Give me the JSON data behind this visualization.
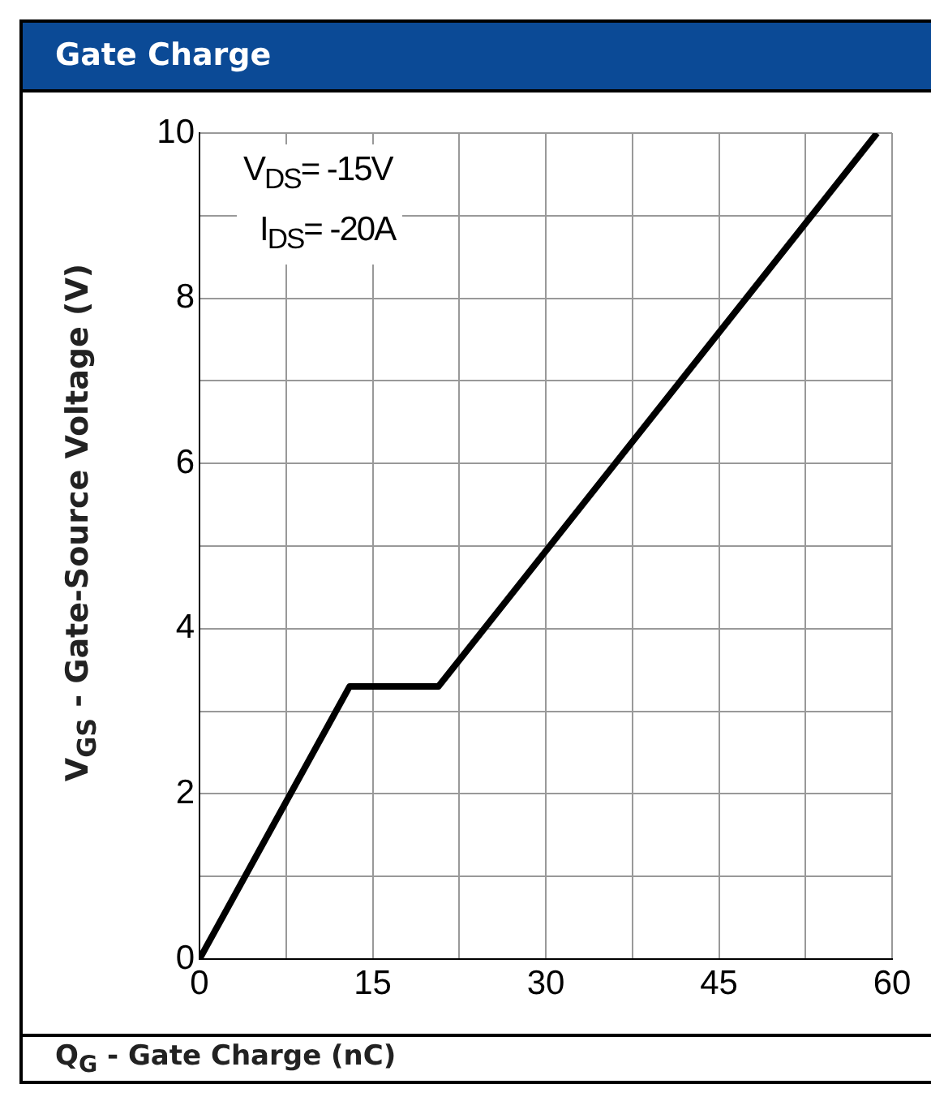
{
  "chart_data": {
    "type": "line",
    "title": "Gate Charge",
    "xlabel": "Q$_{G}$ - Gate Charge (nC)",
    "ylabel": "V$_{GS}$ - Gate-Source Voltage (V)",
    "series": [
      {
        "color": "#000000",
        "x": [
          0,
          13,
          20.7,
          58.7
        ],
        "values": [
          0,
          3.3,
          3.3,
          10
        ]
      }
    ],
    "xlim": [
      0,
      60
    ],
    "xticks": [
      0,
      {
        "value": 7.5,
        "label": null
      },
      15,
      {
        "value": 22.5,
        "label": null
      },
      30,
      {
        "value": 37.5,
        "label": null
      },
      45,
      {
        "value": 52.5,
        "label": null
      },
      60
    ],
    "ylim": [
      0,
      10
    ],
    "yticks": [
      0,
      {
        "value": 1,
        "label": null
      },
      2,
      {
        "value": 3,
        "label": null
      },
      4,
      {
        "value": 5,
        "label": null
      },
      6,
      {
        "value": 7,
        "label": null
      },
      8,
      {
        "value": 9,
        "label": null
      },
      10
    ],
    "annotations": [
      "V$_{DS}$= -15V",
      "I$_{DS}$= -20A"
    ],
    "grid": true,
    "legend": false,
    "marker": "none",
    "line_style": "solid"
  }
}
